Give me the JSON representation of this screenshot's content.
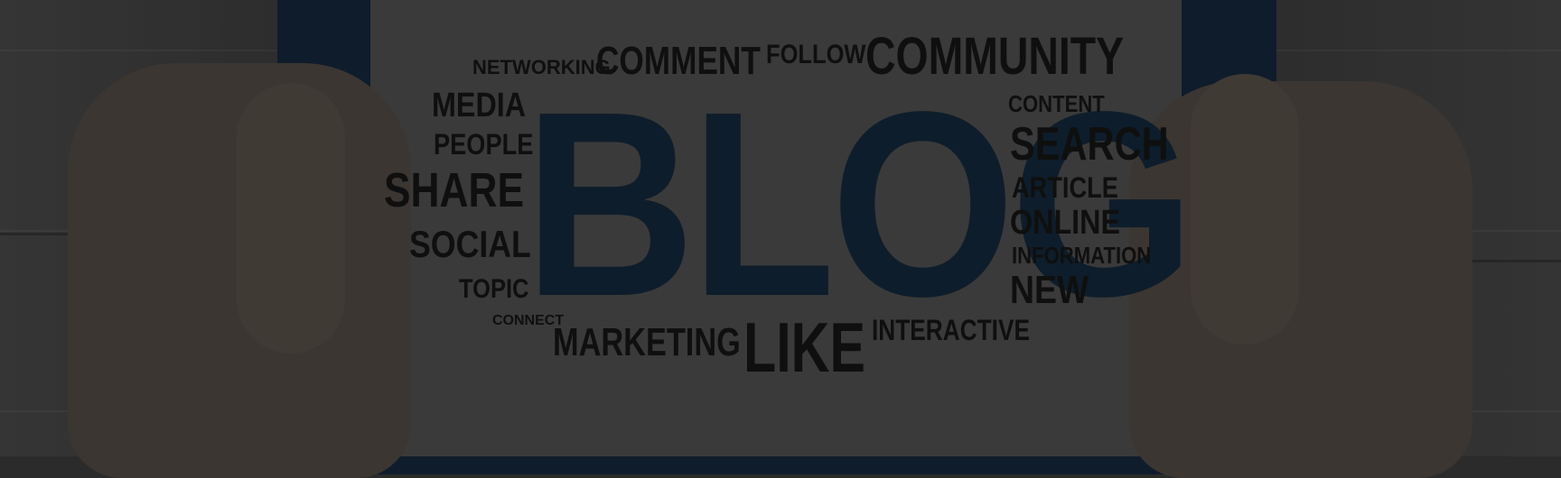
{
  "words": {
    "main": "BLOG",
    "networking": "NETWORKING",
    "comment": "COMMENT",
    "follow": "FOLLOW",
    "community": "COMMUNITY",
    "media": "MEDIA",
    "people": "PEOPLE",
    "share": "SHARE",
    "social": "SOCIAL",
    "topic": "TOPIC",
    "connect": "CONNECT",
    "marketing": "MARKETING",
    "like": "LIKE",
    "interactive": "INTERACTIVE",
    "content": "CONTENT",
    "search": "SEARCH",
    "article": "ARTICLE",
    "online": "ONLINE",
    "information": "INFORMATION",
    "new": "NEW"
  },
  "colors": {
    "background": "#2b2b2b",
    "screen": "#3a3a3a",
    "tablet_frame": "#0f1c2b",
    "main_word": "#0e1d2b",
    "words": "#0f0f0f",
    "hands": "#3b3632"
  }
}
